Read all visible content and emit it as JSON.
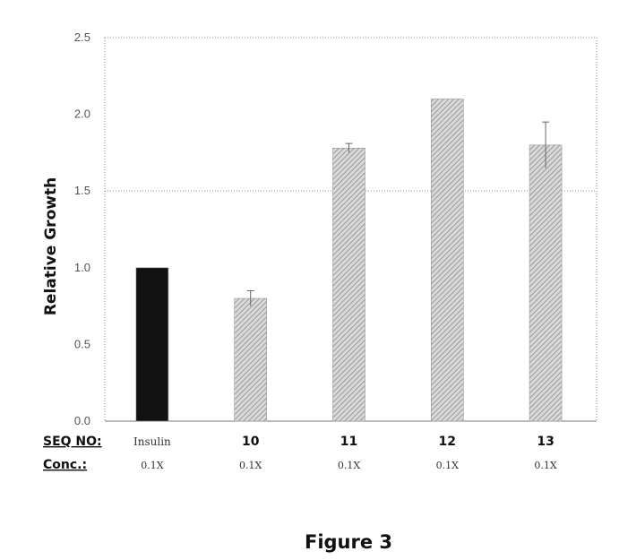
{
  "chart_data": {
    "type": "bar",
    "ylabel": "Relative Growth",
    "ylim": [
      0,
      2.5
    ],
    "yticks": [
      "0.0",
      "0.5",
      "1.0",
      "1.5",
      "2.0",
      "2.5"
    ],
    "grid": "dotted border and dotted horizontal line at 1.5",
    "row_labels": {
      "seq": "SEQ NO:",
      "conc": "Conc.:"
    },
    "categories": [
      "Insulin",
      "10",
      "11",
      "12",
      "13"
    ],
    "conc_labels": [
      "0.1X",
      "0.1X",
      "0.1X",
      "0.1X",
      "0.1X"
    ],
    "values": [
      1.0,
      0.8,
      1.78,
      2.1,
      1.8
    ],
    "errors": [
      0.0,
      0.05,
      0.03,
      0.0,
      0.15
    ],
    "fills": [
      "#111111",
      "hatch",
      "hatch",
      "hatch",
      "hatch"
    ]
  },
  "caption": "Figure 3",
  "colors": {
    "bar_solid": "#111111",
    "hatch_bg": "#d9d9d9",
    "hatch_line": "#8a8a8a",
    "axis": "#888888"
  }
}
